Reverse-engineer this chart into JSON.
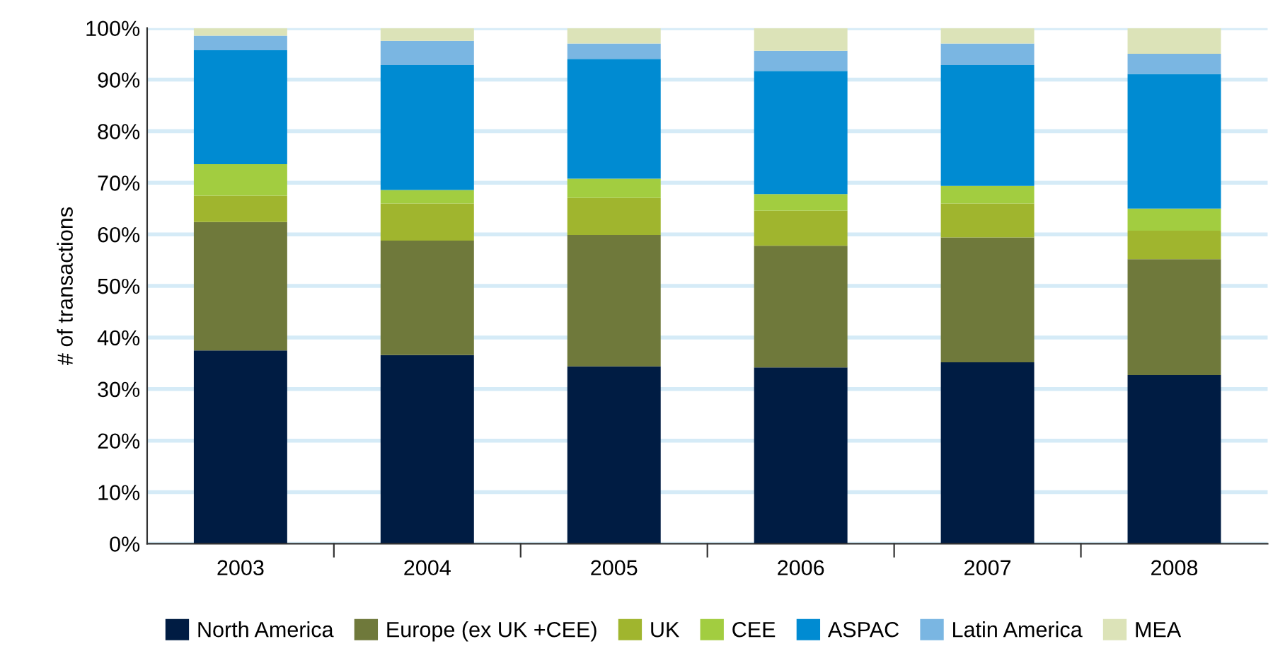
{
  "chart_data": {
    "type": "bar",
    "stacked": true,
    "ylabel": "# of transactions",
    "categories": [
      "2003",
      "2004",
      "2005",
      "2006",
      "2007",
      "2008"
    ],
    "series": [
      {
        "name": "North America",
        "color": "#001c43",
        "values": [
          37.5,
          36.6,
          34.4,
          34.2,
          35.2,
          32.7
        ]
      },
      {
        "name": "Europe (ex UK +CEE)",
        "color": "#6f793b",
        "values": [
          24.9,
          22.2,
          25.5,
          23.6,
          24.2,
          22.5
        ]
      },
      {
        "name": "UK",
        "color": "#a0b52e",
        "values": [
          5.1,
          7.2,
          7.2,
          6.8,
          6.6,
          5.5
        ]
      },
      {
        "name": "CEE",
        "color": "#a2cd40",
        "values": [
          6.1,
          2.6,
          3.7,
          3.2,
          3.4,
          4.3
        ]
      },
      {
        "name": "ASPAC",
        "color": "#008bd2",
        "values": [
          22.1,
          24.2,
          23.2,
          23.9,
          23.4,
          26.1
        ]
      },
      {
        "name": "Latin America",
        "color": "#7ab6e2",
        "values": [
          2.8,
          4.7,
          3.0,
          3.9,
          4.2,
          3.9
        ]
      },
      {
        "name": "MEA",
        "color": "#dce3b8",
        "values": [
          1.5,
          2.5,
          3.0,
          4.4,
          3.0,
          5.0
        ]
      }
    ],
    "ylim": [
      0,
      100
    ],
    "yticks": [
      {
        "value": 0,
        "label": "0%"
      },
      {
        "value": 10,
        "label": "10%"
      },
      {
        "value": 20,
        "label": "20%"
      },
      {
        "value": 30,
        "label": "30%"
      },
      {
        "value": 40,
        "label": "40%"
      },
      {
        "value": 50,
        "label": "50%"
      },
      {
        "value": 60,
        "label": "60%"
      },
      {
        "value": 70,
        "label": "70%"
      },
      {
        "value": 80,
        "label": "80%"
      },
      {
        "value": 90,
        "label": "90%"
      },
      {
        "value": 100,
        "label": "100%"
      }
    ],
    "grid": "y",
    "legend": "bottom"
  }
}
